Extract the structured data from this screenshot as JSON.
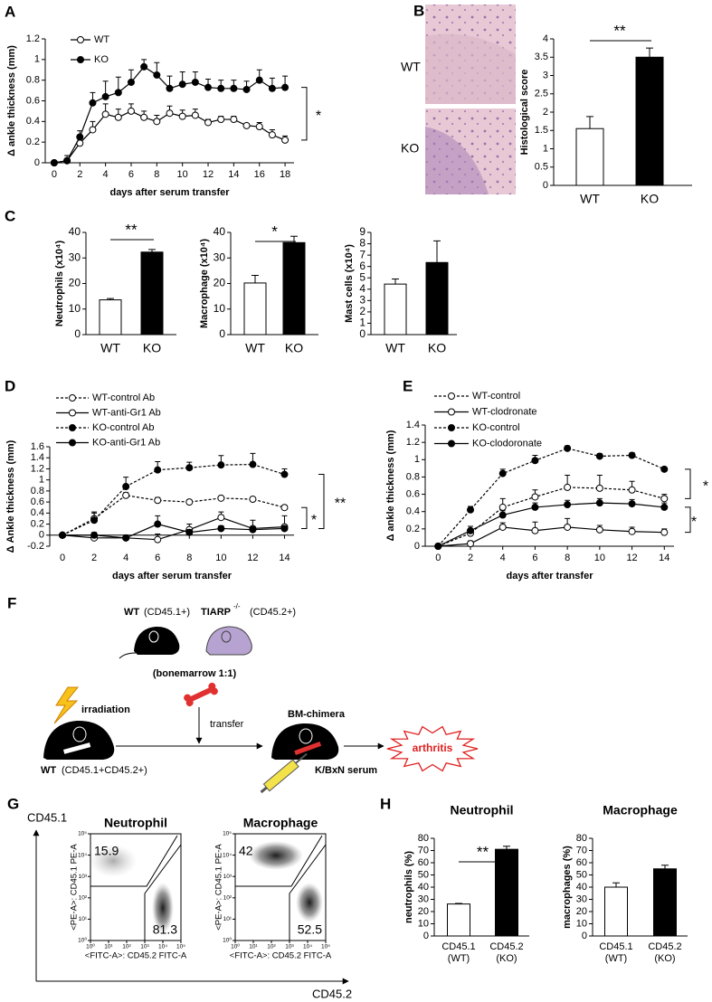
{
  "chart_data": [
    {
      "type": "line",
      "panel": "A",
      "xlabel": "days after serum transfer",
      "ylabel": "Δ ankle thickness (mm)",
      "x": [
        0,
        1,
        2,
        3,
        4,
        5,
        6,
        7,
        8,
        9,
        10,
        11,
        12,
        13,
        14,
        15,
        16,
        17,
        18
      ],
      "xlim": [
        -0.7,
        18.7
      ],
      "xticks": [
        0,
        2,
        4,
        6,
        8,
        10,
        12,
        14,
        16,
        18
      ],
      "ylim": [
        0,
        1.2
      ],
      "yticks": [
        0,
        0.2,
        0.4,
        0.6,
        0.8,
        1,
        1.2
      ],
      "annotations": [
        "*"
      ],
      "series": [
        {
          "name": "WT",
          "color": "#000000",
          "style": "solid",
          "marker": "open",
          "values": [
            0,
            0.02,
            0.19,
            0.32,
            0.47,
            0.44,
            0.5,
            0.44,
            0.4,
            0.48,
            0.45,
            0.46,
            0.39,
            0.42,
            0.42,
            0.36,
            0.35,
            0.27,
            0.22
          ],
          "errors": [
            0,
            0.02,
            0.05,
            0.08,
            0.1,
            0.08,
            0.07,
            0.06,
            0.06,
            0.07,
            0.06,
            0.06,
            0.03,
            0.03,
            0.03,
            0.02,
            0.04,
            0.05,
            0.04
          ]
        },
        {
          "name": "KO",
          "color": "#000000",
          "style": "solid",
          "marker": "filled",
          "values": [
            0,
            0.02,
            0.25,
            0.58,
            0.64,
            0.68,
            0.78,
            0.93,
            0.85,
            0.72,
            0.76,
            0.78,
            0.73,
            0.72,
            0.72,
            0.71,
            0.8,
            0.72,
            0.73
          ],
          "errors": [
            0,
            0.05,
            0.06,
            0.1,
            0.15,
            0.15,
            0.12,
            0.07,
            0.12,
            0.12,
            0.12,
            0.1,
            0.08,
            0.08,
            0.08,
            0.08,
            0.1,
            0.1,
            0.11
          ]
        }
      ]
    },
    {
      "type": "bar",
      "panel": "B",
      "image_labels": [
        "WT",
        "KO"
      ],
      "ylabel": "Histological score",
      "categories": [
        "WT",
        "KO"
      ],
      "values": [
        1.55,
        3.5
      ],
      "errors": [
        0.33,
        0.25
      ],
      "colors": [
        "#ffffff",
        "#000000"
      ],
      "ylim": [
        0,
        4
      ],
      "yticks": [
        0,
        0.5,
        1,
        1.5,
        2,
        2.5,
        3,
        3.5,
        4
      ],
      "annotation": "**"
    },
    {
      "type": "bar",
      "panel": "C",
      "ylabel": "Neutrophils (x10⁴)",
      "categories": [
        "WT",
        "KO"
      ],
      "values": [
        13.6,
        32.3
      ],
      "errors": [
        0.5,
        1
      ],
      "colors": [
        "#ffffff",
        "#000000"
      ],
      "ylim": [
        0,
        40
      ],
      "yticks": [
        0,
        10,
        20,
        30,
        40
      ],
      "annotation": "**"
    },
    {
      "type": "bar",
      "ylabel": "Macrophage (x10⁴)",
      "categories": [
        "WT",
        "KO"
      ],
      "values": [
        20.2,
        36
      ],
      "errors": [
        3,
        2.5
      ],
      "colors": [
        "#ffffff",
        "#000000"
      ],
      "ylim": [
        0,
        40
      ],
      "yticks": [
        0,
        10,
        20,
        30,
        40
      ],
      "annotation": "*"
    },
    {
      "type": "bar",
      "ylabel": "Mast cells (x10⁴)",
      "categories": [
        "WT",
        "KO"
      ],
      "values": [
        4.45,
        6.35
      ],
      "errors": [
        0.45,
        1.9
      ],
      "colors": [
        "#ffffff",
        "#000000"
      ],
      "ylim": [
        0,
        9
      ],
      "yticks": [
        0,
        1,
        2,
        3,
        4,
        5,
        6,
        7,
        8,
        9
      ]
    },
    {
      "type": "line",
      "panel": "D",
      "xlabel": "days after serum transfer",
      "ylabel": "Δ Ankle thickness (mm)",
      "x": [
        0,
        2,
        4,
        6,
        8,
        10,
        12,
        14
      ],
      "xlim": [
        -0.8,
        14.6
      ],
      "xticks": [
        0,
        2,
        4,
        6,
        8,
        10,
        12,
        14
      ],
      "ylim": [
        -0.2,
        1.6
      ],
      "yticks": [
        -0.2,
        0,
        0.2,
        0.4,
        0.6,
        0.8,
        1,
        1.2,
        1.4,
        1.6
      ],
      "annotations": [
        "*",
        "**"
      ],
      "series": [
        {
          "name": "WT-control Ab",
          "color": "#000000",
          "style": "dashed",
          "marker": "open",
          "values": [
            0,
            0.3,
            0.72,
            0.63,
            0.6,
            0.67,
            0.65,
            0.5
          ],
          "errors": [
            0,
            0.1,
            0.05,
            0.05,
            0.04,
            0.03,
            0.04,
            0.04
          ]
        },
        {
          "name": "WT-anti-Gr1 Ab",
          "color": "#000000",
          "style": "solid",
          "marker": "open",
          "values": [
            0,
            -0.05,
            -0.05,
            -0.08,
            0.1,
            0.32,
            0.12,
            0.15
          ],
          "errors": [
            0,
            0.05,
            0.05,
            0.1,
            0.1,
            0.1,
            0.15,
            0.2
          ]
        },
        {
          "name": "KO-control Ab",
          "color": "#000000",
          "style": "dashed",
          "marker": "filled",
          "values": [
            0,
            0.27,
            0.88,
            1.18,
            1.22,
            1.27,
            1.28,
            1.1
          ],
          "errors": [
            0,
            0.15,
            0.17,
            0.15,
            0.1,
            0.17,
            0.2,
            0.1
          ]
        },
        {
          "name": "KO-anti-Gr1 Ab",
          "color": "#000000",
          "style": "solid",
          "marker": "filled",
          "values": [
            0,
            0,
            -0.05,
            0.2,
            0.05,
            0.12,
            0.1,
            0.12
          ],
          "errors": [
            0,
            0.05,
            0.02,
            0.15,
            0.05,
            0.05,
            0.05,
            0.05
          ]
        }
      ]
    },
    {
      "type": "line",
      "panel": "E",
      "xlabel": "days after transfer",
      "ylabel": "Δ ankle thickness (mm)",
      "x": [
        0,
        2,
        4,
        6,
        8,
        10,
        12,
        14
      ],
      "xlim": [
        -0.8,
        14.6
      ],
      "xticks": [
        0,
        2,
        4,
        6,
        8,
        10,
        12,
        14
      ],
      "ylim": [
        0,
        1.4
      ],
      "yticks": [
        0,
        0.2,
        0.4,
        0.6,
        0.8,
        1,
        1.2,
        1.4
      ],
      "annotations": [
        "*",
        "*"
      ],
      "series": [
        {
          "name": "WT-control",
          "color": "#000000",
          "style": "dashed",
          "marker": "open",
          "values": [
            0,
            0.15,
            0.45,
            0.57,
            0.68,
            0.67,
            0.65,
            0.55
          ],
          "errors": [
            0,
            0.05,
            0.1,
            0.08,
            0.14,
            0.15,
            0.1,
            0.05
          ]
        },
        {
          "name": "WT-clodronate",
          "color": "#000000",
          "style": "solid",
          "marker": "open",
          "values": [
            0,
            0.03,
            0.22,
            0.18,
            0.22,
            0.19,
            0.17,
            0.16
          ],
          "errors": [
            0,
            0.03,
            0.05,
            0.1,
            0.1,
            0.05,
            0.05,
            0.04
          ]
        },
        {
          "name": "KO-control",
          "color": "#000000",
          "style": "dashed",
          "marker": "filled",
          "values": [
            0,
            0.42,
            0.84,
            0.99,
            1.13,
            1.04,
            1.05,
            0.89
          ],
          "errors": [
            0,
            0.04,
            0.05,
            0.06,
            0.03,
            0.03,
            0.03,
            0.02
          ]
        },
        {
          "name": "KO-clodoronate",
          "color": "#000000",
          "style": "solid",
          "marker": "filled",
          "values": [
            0,
            0.18,
            0.36,
            0.45,
            0.48,
            0.5,
            0.49,
            0.45
          ],
          "errors": [
            0,
            0.05,
            0.05,
            0.05,
            0.05,
            0.05,
            0.05,
            0.05
          ]
        }
      ]
    },
    {
      "type": "bar",
      "panel": "H",
      "title": "Neutrophil",
      "ylabel": "neutrophils (%)",
      "categories": [
        "CD45.1 (WT)",
        "CD45.2 (KO)"
      ],
      "values": [
        26.2,
        71
      ],
      "errors": [
        0.5,
        2.5
      ],
      "colors": [
        "#ffffff",
        "#000000"
      ],
      "ylim": [
        0,
        80
      ],
      "yticks": [
        0,
        10,
        20,
        30,
        40,
        50,
        60,
        70,
        80
      ],
      "annotation": "**"
    },
    {
      "type": "bar",
      "title": "Macrophage",
      "ylabel": "macrophages (%)",
      "categories": [
        "CD45.1 (WT)",
        "CD45.2 (KO)"
      ],
      "values": [
        40,
        55
      ],
      "errors": [
        3.5,
        3
      ],
      "colors": [
        "#ffffff",
        "#000000"
      ],
      "ylim": [
        0,
        80
      ],
      "yticks": [
        0,
        10,
        20,
        30,
        40,
        50,
        60,
        70,
        80
      ]
    }
  ],
  "diagram": {
    "panel": "F",
    "wt": "WT",
    "wt_marker": "(CD45.1+)",
    "ko": "TIARP",
    "ko_sup": "-/-",
    "ko_marker": "(CD45.2+)",
    "mix": "(bonemarrow 1:1)",
    "irradiation": "irradiation",
    "transfer": "transfer",
    "chimera": "BM-chimera",
    "outcome": "arthritis",
    "serum": "K/BxN serum",
    "recipient": "WT",
    "recipient_marker": "(CD45.1+CD45.2+)"
  },
  "flow": {
    "panel": "G",
    "y_title": "CD45.1",
    "x_title": "CD45.2",
    "ylabel": "<PE-A>: CD45.1 PE-A",
    "xlabel": "<FITC-A>: CD45.2 FITC-A",
    "log": true,
    "xlim": [
      1,
      100000
    ],
    "ylim": [
      1,
      100000
    ],
    "ticks": [
      {
        "value": 1,
        "label": "10⁰"
      },
      {
        "value": 10,
        "label": "10¹"
      },
      {
        "value": 100,
        "label": "10²"
      },
      {
        "value": 1000,
        "label": "10³"
      },
      {
        "value": 10000,
        "label": "10⁴"
      },
      {
        "value": 100000,
        "label": "10⁵"
      }
    ],
    "plots": [
      {
        "title": "Neutrophil",
        "gates": [
          15.9,
          81.3
        ]
      },
      {
        "title": "Macrophage",
        "gates": [
          42,
          52.5
        ]
      }
    ]
  }
}
